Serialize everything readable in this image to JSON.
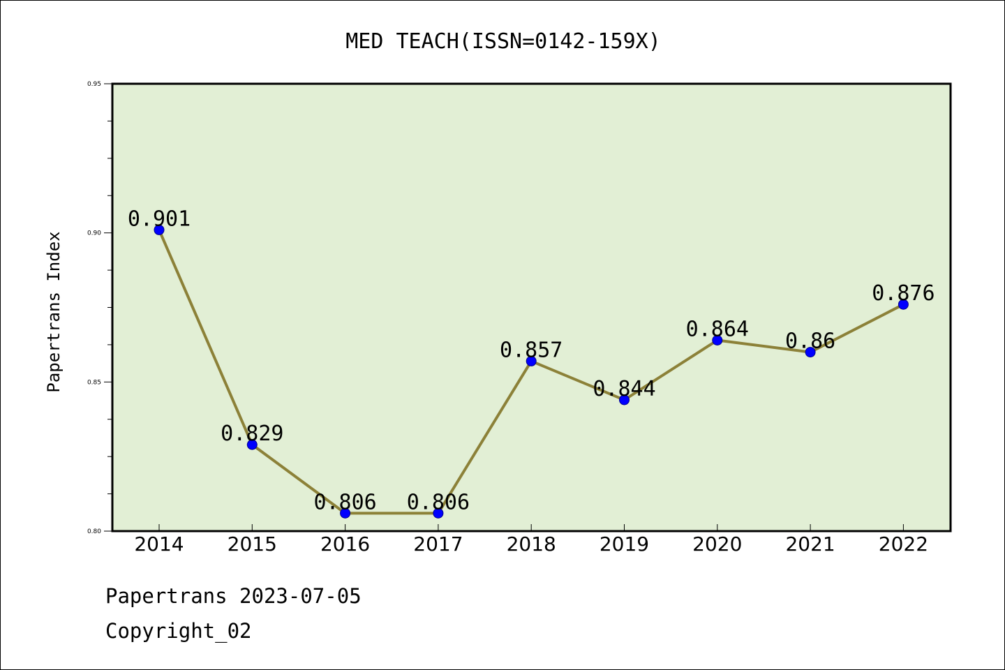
{
  "chart_data": {
    "type": "line",
    "title": "MED TEACH(ISSN=0142-159X)",
    "xlabel": "",
    "ylabel": "Papertrans Index",
    "ylim": [
      0.8,
      0.95
    ],
    "yticks": [
      "0.80",
      "0.85",
      "0.90",
      "0.95"
    ],
    "grid": false,
    "categories": [
      "2014",
      "2015",
      "2016",
      "2017",
      "2018",
      "2019",
      "2020",
      "2021",
      "2022"
    ],
    "series": [
      {
        "values": [
          0.901,
          0.829,
          0.806,
          0.806,
          0.857,
          0.844,
          0.864,
          0.86,
          0.876
        ],
        "labels": [
          "0.901",
          "0.829",
          "0.806",
          "0.806",
          "0.857",
          "0.844",
          "0.864",
          "0.86",
          "0.876"
        ]
      }
    ],
    "colors": {
      "plot_background": "#e2efd5",
      "line": "#8c8138",
      "marker": "#0000ff"
    }
  },
  "footer": {
    "date": "Papertrans 2023-07-05",
    "copyright": "Copyright_02"
  }
}
